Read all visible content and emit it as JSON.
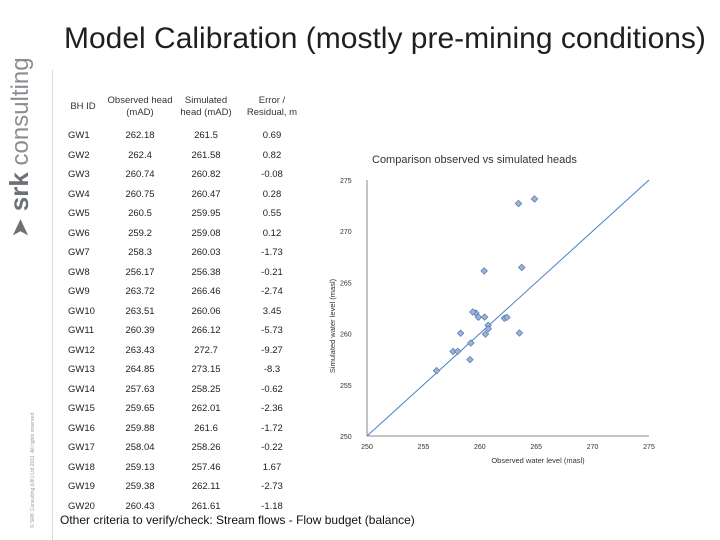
{
  "brand": {
    "light": "consulting",
    "bold": "srk",
    "copyright": "© SRK Consulting (UK) Ltd 2011. All rights reserved."
  },
  "slide_title": "Model Calibration (mostly pre-mining conditions)",
  "table": {
    "headers": [
      "BH ID",
      "Observed head (mAD)",
      "Simulated head (mAD)",
      "Error / Residual, m"
    ],
    "rows": [
      [
        "GW1",
        "262.18",
        "261.5",
        "0.69"
      ],
      [
        "GW2",
        "262.4",
        "261.58",
        "0.82"
      ],
      [
        "GW3",
        "260.74",
        "260.82",
        "-0.08"
      ],
      [
        "GW4",
        "260.75",
        "260.47",
        "0.28"
      ],
      [
        "GW5",
        "260.5",
        "259.95",
        "0.55"
      ],
      [
        "GW6",
        "259.2",
        "259.08",
        "0.12"
      ],
      [
        "GW7",
        "258.3",
        "260.03",
        "-1.73"
      ],
      [
        "GW8",
        "256.17",
        "256.38",
        "-0.21"
      ],
      [
        "GW9",
        "263.72",
        "266.46",
        "-2.74"
      ],
      [
        "GW10",
        "263.51",
        "260.06",
        "3.45"
      ],
      [
        "GW11",
        "260.39",
        "266.12",
        "-5.73"
      ],
      [
        "GW12",
        "263.43",
        "272.7",
        "-9.27"
      ],
      [
        "GW13",
        "264.85",
        "273.15",
        "-8.3"
      ],
      [
        "GW14",
        "257.63",
        "258.25",
        "-0.62"
      ],
      [
        "GW15",
        "259.65",
        "262.01",
        "-2.36"
      ],
      [
        "GW16",
        "259.88",
        "261.6",
        "-1.72"
      ],
      [
        "GW17",
        "258.04",
        "258.26",
        "-0.22"
      ],
      [
        "GW18",
        "259.13",
        "257.46",
        "1.67"
      ],
      [
        "GW19",
        "259.38",
        "262.11",
        "-2.73"
      ],
      [
        "GW20",
        "260.43",
        "261.61",
        "-1.18"
      ]
    ]
  },
  "footer_note": "Other criteria to verify/check: Stream flows - Flow budget (balance)",
  "chart_data": {
    "type": "scatter",
    "title": "Comparison observed vs simulated heads",
    "xlabel": "Observed water level (masl)",
    "ylabel": "Simulated water level (masl)",
    "xlim": [
      250,
      275
    ],
    "ylim": [
      250,
      275
    ],
    "xticks": [
      "250",
      "255",
      "260",
      "265",
      "270",
      "275"
    ],
    "yticks": [
      "250",
      "255",
      "260",
      "265",
      "270",
      "275"
    ],
    "series": [
      {
        "x": [
          262.18,
          262.4,
          260.74,
          260.75,
          260.5,
          259.2,
          258.3,
          256.17,
          263.72,
          263.51,
          260.39,
          263.43,
          264.85,
          257.63,
          259.65,
          259.88,
          258.04,
          259.13,
          259.38,
          260.43
        ],
        "y": [
          261.5,
          261.58,
          260.82,
          260.47,
          259.95,
          259.08,
          260.03,
          256.38,
          266.46,
          260.06,
          266.12,
          272.7,
          273.15,
          258.25,
          262.01,
          261.6,
          258.26,
          257.46,
          262.11,
          261.61
        ]
      }
    ],
    "reference_line": "1:1",
    "grid": false,
    "marker": "diamond",
    "marker_color": "#9fb4d4",
    "marker_edge": "#5b7db8",
    "line_color": "#4a7fc1"
  }
}
